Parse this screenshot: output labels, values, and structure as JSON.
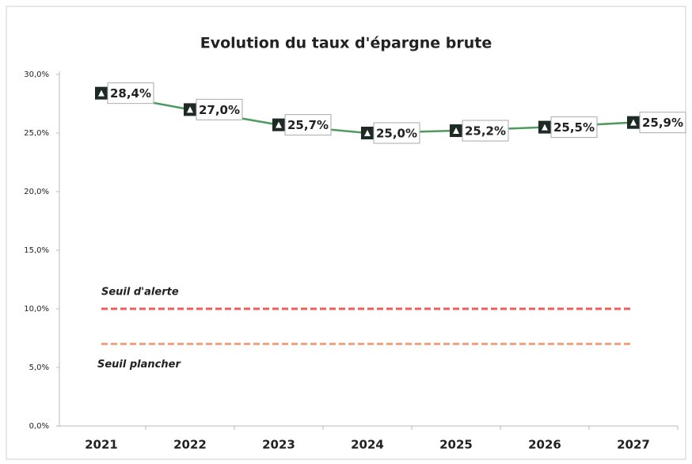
{
  "chart_data": {
    "type": "line",
    "title": "Evolution du taux d'épargne brute",
    "categories": [
      "2021",
      "2022",
      "2023",
      "2024",
      "2025",
      "2026",
      "2027"
    ],
    "series": [
      {
        "name": "Taux d'épargne brute",
        "color": "#4f9a5e",
        "values": [
          28.4,
          27.0,
          25.7,
          25.0,
          25.2,
          25.5,
          25.9
        ],
        "value_labels": [
          "28,4%",
          "27,0%",
          "25,7%",
          "25,0%",
          "25,2%",
          "25,5%",
          "25,9%"
        ]
      }
    ],
    "reference_lines": [
      {
        "name": "Seuil d'alerte",
        "value": 10,
        "color": "#e8605a"
      },
      {
        "name": "Seuil plancher",
        "value": 7,
        "color": "#f2a07e"
      }
    ],
    "ylim": [
      0,
      30
    ],
    "yticks": [
      {
        "value": 0,
        "label": "0,0%"
      },
      {
        "value": 5,
        "label": "5,0%"
      },
      {
        "value": 10,
        "label": "10,0%"
      },
      {
        "value": 15,
        "label": "15,0%"
      },
      {
        "value": 20,
        "label": "20,0%"
      },
      {
        "value": 25,
        "label": "25,0%"
      },
      {
        "value": 30,
        "label": "30,0%"
      }
    ]
  }
}
